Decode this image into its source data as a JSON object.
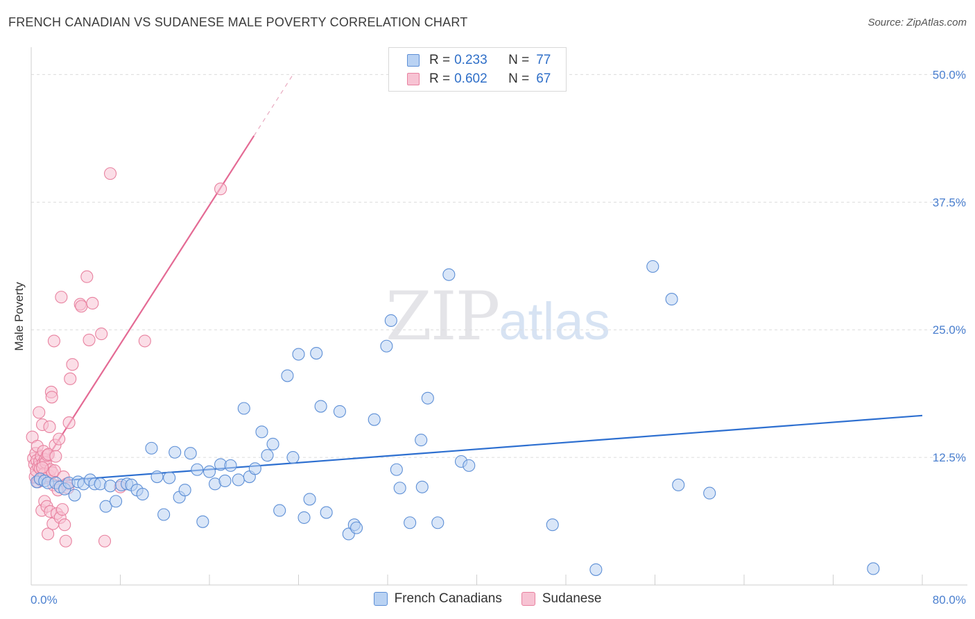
{
  "header": {
    "title": "FRENCH CANADIAN VS SUDANESE MALE POVERTY CORRELATION CHART",
    "source": "Source: ZipAtlas.com"
  },
  "watermark": {
    "zip": "ZIP",
    "atlas": "atlas"
  },
  "legend": {
    "rows": [
      {
        "r_label": "R =",
        "r_value": "0.233",
        "n_label": "N =",
        "n_value": "77"
      },
      {
        "r_label": "R =",
        "r_value": "0.602",
        "n_label": "N =",
        "n_value": "67"
      }
    ]
  },
  "colors": {
    "blue_fill": "#b9d2f3",
    "blue_stroke": "#5d8fd6",
    "blue_line": "#2d6fd0",
    "pink_fill": "#f7c3d3",
    "pink_stroke": "#e8819f",
    "pink_line": "#e46a94"
  },
  "chart_data": {
    "type": "scatter",
    "xlabel": "",
    "ylabel": "Male Poverty",
    "xlim": [
      0,
      80
    ],
    "ylim": [
      0,
      52
    ],
    "x_tick_labels": [
      "0.0%",
      "80.0%"
    ],
    "y_ticks": [
      12.5,
      25.0,
      37.5,
      50.0
    ],
    "y_tick_labels": [
      "12.5%",
      "25.0%",
      "37.5%",
      "50.0%"
    ],
    "grid": true,
    "legend_position": "top-center",
    "series": [
      {
        "name": "French Canadians",
        "trend": {
          "x": [
            0,
            80
          ],
          "y": [
            10.0,
            16.6
          ]
        },
        "points": [
          [
            0.5,
            10.1
          ],
          [
            0.8,
            10.4
          ],
          [
            1.2,
            10.2
          ],
          [
            1.5,
            10.0
          ],
          [
            2.2,
            10.0
          ],
          [
            2.6,
            9.6
          ],
          [
            3.0,
            9.4
          ],
          [
            3.4,
            10.0
          ],
          [
            3.9,
            8.8
          ],
          [
            4.2,
            10.1
          ],
          [
            4.7,
            9.9
          ],
          [
            5.3,
            10.3
          ],
          [
            5.7,
            9.9
          ],
          [
            6.2,
            9.9
          ],
          [
            6.7,
            7.7
          ],
          [
            7.1,
            9.7
          ],
          [
            7.6,
            8.2
          ],
          [
            8.1,
            9.8
          ],
          [
            8.6,
            9.9
          ],
          [
            9.0,
            9.8
          ],
          [
            9.5,
            9.3
          ],
          [
            10.0,
            8.9
          ],
          [
            10.8,
            13.4
          ],
          [
            11.3,
            10.6
          ],
          [
            11.9,
            6.9
          ],
          [
            12.4,
            10.5
          ],
          [
            12.9,
            13.0
          ],
          [
            13.3,
            8.6
          ],
          [
            13.8,
            9.3
          ],
          [
            14.3,
            12.9
          ],
          [
            14.9,
            11.3
          ],
          [
            15.4,
            6.2
          ],
          [
            16.0,
            11.1
          ],
          [
            16.5,
            9.9
          ],
          [
            17.0,
            11.8
          ],
          [
            17.4,
            10.2
          ],
          [
            17.9,
            11.7
          ],
          [
            18.6,
            10.3
          ],
          [
            19.1,
            17.3
          ],
          [
            19.6,
            10.6
          ],
          [
            20.1,
            11.4
          ],
          [
            20.7,
            15.0
          ],
          [
            21.2,
            12.7
          ],
          [
            21.7,
            13.8
          ],
          [
            22.3,
            7.3
          ],
          [
            23.0,
            20.5
          ],
          [
            23.5,
            12.5
          ],
          [
            24.0,
            22.6
          ],
          [
            24.5,
            6.6
          ],
          [
            25.0,
            8.4
          ],
          [
            25.6,
            22.7
          ],
          [
            26.0,
            17.5
          ],
          [
            26.5,
            7.1
          ],
          [
            27.7,
            17.0
          ],
          [
            28.5,
            5.0
          ],
          [
            29.0,
            5.9
          ],
          [
            29.2,
            5.6
          ],
          [
            30.8,
            16.2
          ],
          [
            31.9,
            23.4
          ],
          [
            32.3,
            25.9
          ],
          [
            32.8,
            11.3
          ],
          [
            33.1,
            9.5
          ],
          [
            34.0,
            6.1
          ],
          [
            35.0,
            14.2
          ],
          [
            35.1,
            9.6
          ],
          [
            35.6,
            18.3
          ],
          [
            36.5,
            6.1
          ],
          [
            37.5,
            30.4
          ],
          [
            38.6,
            12.1
          ],
          [
            39.3,
            11.7
          ],
          [
            46.8,
            5.9
          ],
          [
            50.7,
            1.5
          ],
          [
            55.8,
            31.2
          ],
          [
            57.5,
            28.0
          ],
          [
            58.1,
            9.8
          ],
          [
            60.9,
            9.0
          ],
          [
            75.6,
            1.6
          ]
        ]
      },
      {
        "name": "Sudanese",
        "trend": {
          "x": [
            0,
            20.0
          ],
          "y": [
            10.0,
            44.0
          ],
          "dash_to": [
            23.5,
            50.0
          ]
        },
        "points": [
          [
            0.1,
            14.5
          ],
          [
            0.2,
            12.4
          ],
          [
            0.3,
            11.8
          ],
          [
            0.35,
            10.6
          ],
          [
            0.4,
            12.9
          ],
          [
            0.45,
            11.2
          ],
          [
            0.5,
            12.2
          ],
          [
            0.55,
            13.6
          ],
          [
            0.6,
            10.1
          ],
          [
            0.65,
            11.6
          ],
          [
            0.7,
            16.9
          ],
          [
            0.75,
            12.1
          ],
          [
            0.8,
            11.4
          ],
          [
            0.85,
            10.3
          ],
          [
            0.9,
            12.6
          ],
          [
            0.95,
            7.3
          ],
          [
            1.0,
            15.7
          ],
          [
            1.05,
            11.9
          ],
          [
            1.1,
            13.1
          ],
          [
            1.15,
            10.9
          ],
          [
            1.2,
            8.2
          ],
          [
            1.25,
            12.3
          ],
          [
            1.3,
            12.0
          ],
          [
            1.35,
            10.5
          ],
          [
            1.4,
            7.7
          ],
          [
            1.45,
            12.7
          ],
          [
            1.5,
            5.0
          ],
          [
            1.55,
            12.8
          ],
          [
            1.6,
            10.7
          ],
          [
            1.65,
            15.5
          ],
          [
            1.7,
            7.2
          ],
          [
            1.75,
            11.3
          ],
          [
            1.8,
            18.9
          ],
          [
            1.85,
            18.4
          ],
          [
            1.9,
            11.0
          ],
          [
            1.95,
            6.0
          ],
          [
            2.0,
            9.8
          ],
          [
            2.05,
            23.9
          ],
          [
            2.1,
            11.2
          ],
          [
            2.15,
            13.7
          ],
          [
            2.2,
            12.6
          ],
          [
            2.3,
            7.0
          ],
          [
            2.4,
            9.3
          ],
          [
            2.5,
            14.3
          ],
          [
            2.6,
            6.6
          ],
          [
            2.7,
            28.2
          ],
          [
            2.8,
            7.4
          ],
          [
            2.9,
            10.6
          ],
          [
            3.0,
            5.9
          ],
          [
            3.1,
            4.3
          ],
          [
            3.2,
            9.9
          ],
          [
            3.3,
            9.5
          ],
          [
            3.4,
            15.9
          ],
          [
            3.5,
            20.2
          ],
          [
            3.7,
            21.6
          ],
          [
            4.4,
            27.5
          ],
          [
            4.5,
            27.3
          ],
          [
            5.0,
            30.2
          ],
          [
            5.2,
            24.0
          ],
          [
            5.5,
            27.6
          ],
          [
            6.3,
            24.6
          ],
          [
            6.6,
            4.3
          ],
          [
            7.1,
            40.3
          ],
          [
            8.0,
            9.6
          ],
          [
            10.2,
            23.9
          ],
          [
            17.0,
            38.8
          ],
          [
            1.0,
            11.5
          ]
        ]
      }
    ]
  }
}
